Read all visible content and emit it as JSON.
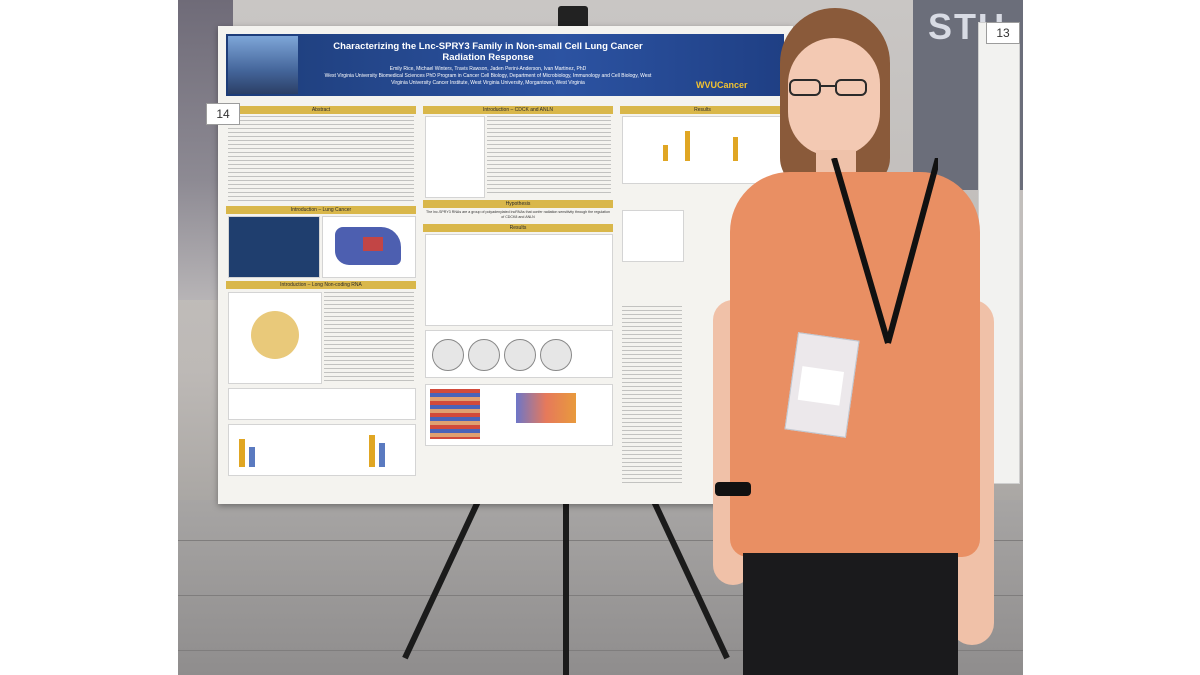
{
  "poster": {
    "title": "Characterizing the Lnc-SPRY3 Family in Non-small Cell Lung Cancer Radiation Response",
    "authors": "Emily Rice, Michael Winters, Travis Rawson, Jaden Perini-Anderson, Ivan Martinez, PhD",
    "affiliation": "West Virginia University Biomedical Sciences PhD Program in Cancer Cell Biology, Department of Microbiology, Immunology and Cell Biology, West Virginia University Cancer Institute, West Virginia University, Morgantown, West Virginia",
    "logo_text": "WVUCancer",
    "sections": {
      "abstract": "Abstract",
      "intro_lung": "Introduction – Lung Cancer",
      "intro_lnc": "Introduction – Long Non-coding RNA",
      "intro_cdck": "Introduction – CDCK and ANLN",
      "hypothesis": "Hypothesis",
      "results_center": "Results",
      "results_right": "Results"
    },
    "hypothesis_text": "The lnc-SPRY3 RNAs are a group of polyadenylated lncRNAs that confer radiation sensitivity through the regulation of CDCK8 and ANLN"
  },
  "board_numbers": {
    "left": "14",
    "right": "13"
  },
  "wall_sign": "STU",
  "colors": {
    "header_blue": "#23458c",
    "section_gold": "#d9b74a",
    "blouse": "#e98f63"
  }
}
